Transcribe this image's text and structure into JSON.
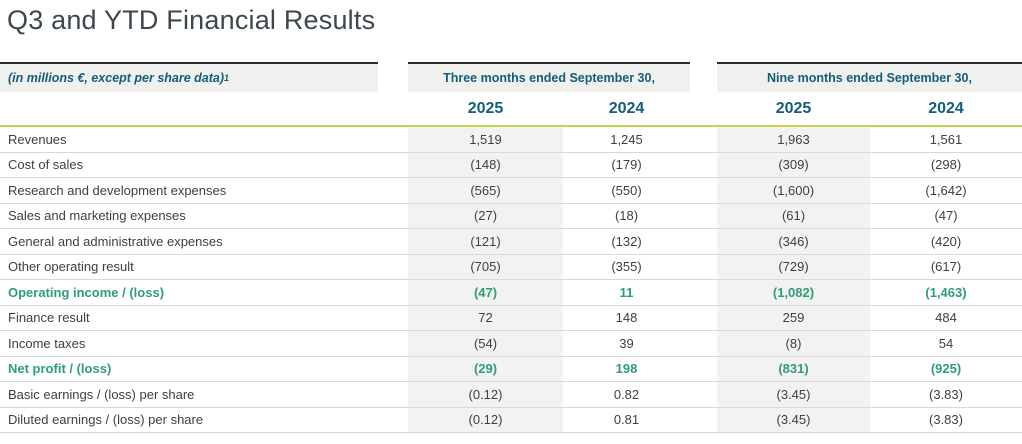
{
  "page_title": "Q3 and YTD Financial Results",
  "colors": {
    "header_teal": "#135e78",
    "highlight_green": "#2f9e74",
    "accent_line_lime": "#c3d34f",
    "header_bg": "#f0f0ef",
    "shaded_column_bg": "#f2f2f1",
    "body_text": "#404040",
    "title_text": "#3d484d"
  },
  "table": {
    "unit_label": "(in millions €, except per share data)",
    "footnote_marker": "1",
    "groups": [
      {
        "label": "Three months ended September 30,",
        "years": [
          "2025",
          "2024"
        ]
      },
      {
        "label": "Nine months ended September 30,",
        "years": [
          "2025",
          "2024"
        ]
      }
    ],
    "rows": [
      {
        "label": "Revenues",
        "values": [
          "1,519",
          "1,245",
          "1,963",
          "1,561"
        ]
      },
      {
        "label": "Cost of sales",
        "values": [
          "(148)",
          "(179)",
          "(309)",
          "(298)"
        ]
      },
      {
        "label": "Research and development expenses",
        "values": [
          "(565)",
          "(550)",
          "(1,600)",
          "(1,642)"
        ]
      },
      {
        "label": "Sales and marketing expenses",
        "values": [
          "(27)",
          "(18)",
          "(61)",
          "(47)"
        ]
      },
      {
        "label": "General and administrative expenses",
        "values": [
          "(121)",
          "(132)",
          "(346)",
          "(420)"
        ]
      },
      {
        "label": "Other operating result",
        "values": [
          "(705)",
          "(355)",
          "(729)",
          "(617)"
        ]
      },
      {
        "label": "Operating income / (loss)",
        "values": [
          "(47)",
          "11",
          "(1,082)",
          "(1,463)"
        ],
        "highlight": true
      },
      {
        "label": "Finance result",
        "values": [
          "72",
          "148",
          "259",
          "484"
        ]
      },
      {
        "label": "Income taxes",
        "values": [
          "(54)",
          "39",
          "(8)",
          "54"
        ]
      },
      {
        "label": "Net profit / (loss)",
        "values": [
          "(29)",
          "198",
          "(831)",
          "(925)"
        ],
        "highlight": true
      },
      {
        "label": "Basic earnings / (loss) per share",
        "values": [
          "(0.12)",
          "0.82",
          "(3.45)",
          "(3.83)"
        ]
      },
      {
        "label": "Diluted earnings / (loss) per share",
        "values": [
          "(0.12)",
          "0.81",
          "(3.45)",
          "(3.83)"
        ]
      }
    ]
  }
}
